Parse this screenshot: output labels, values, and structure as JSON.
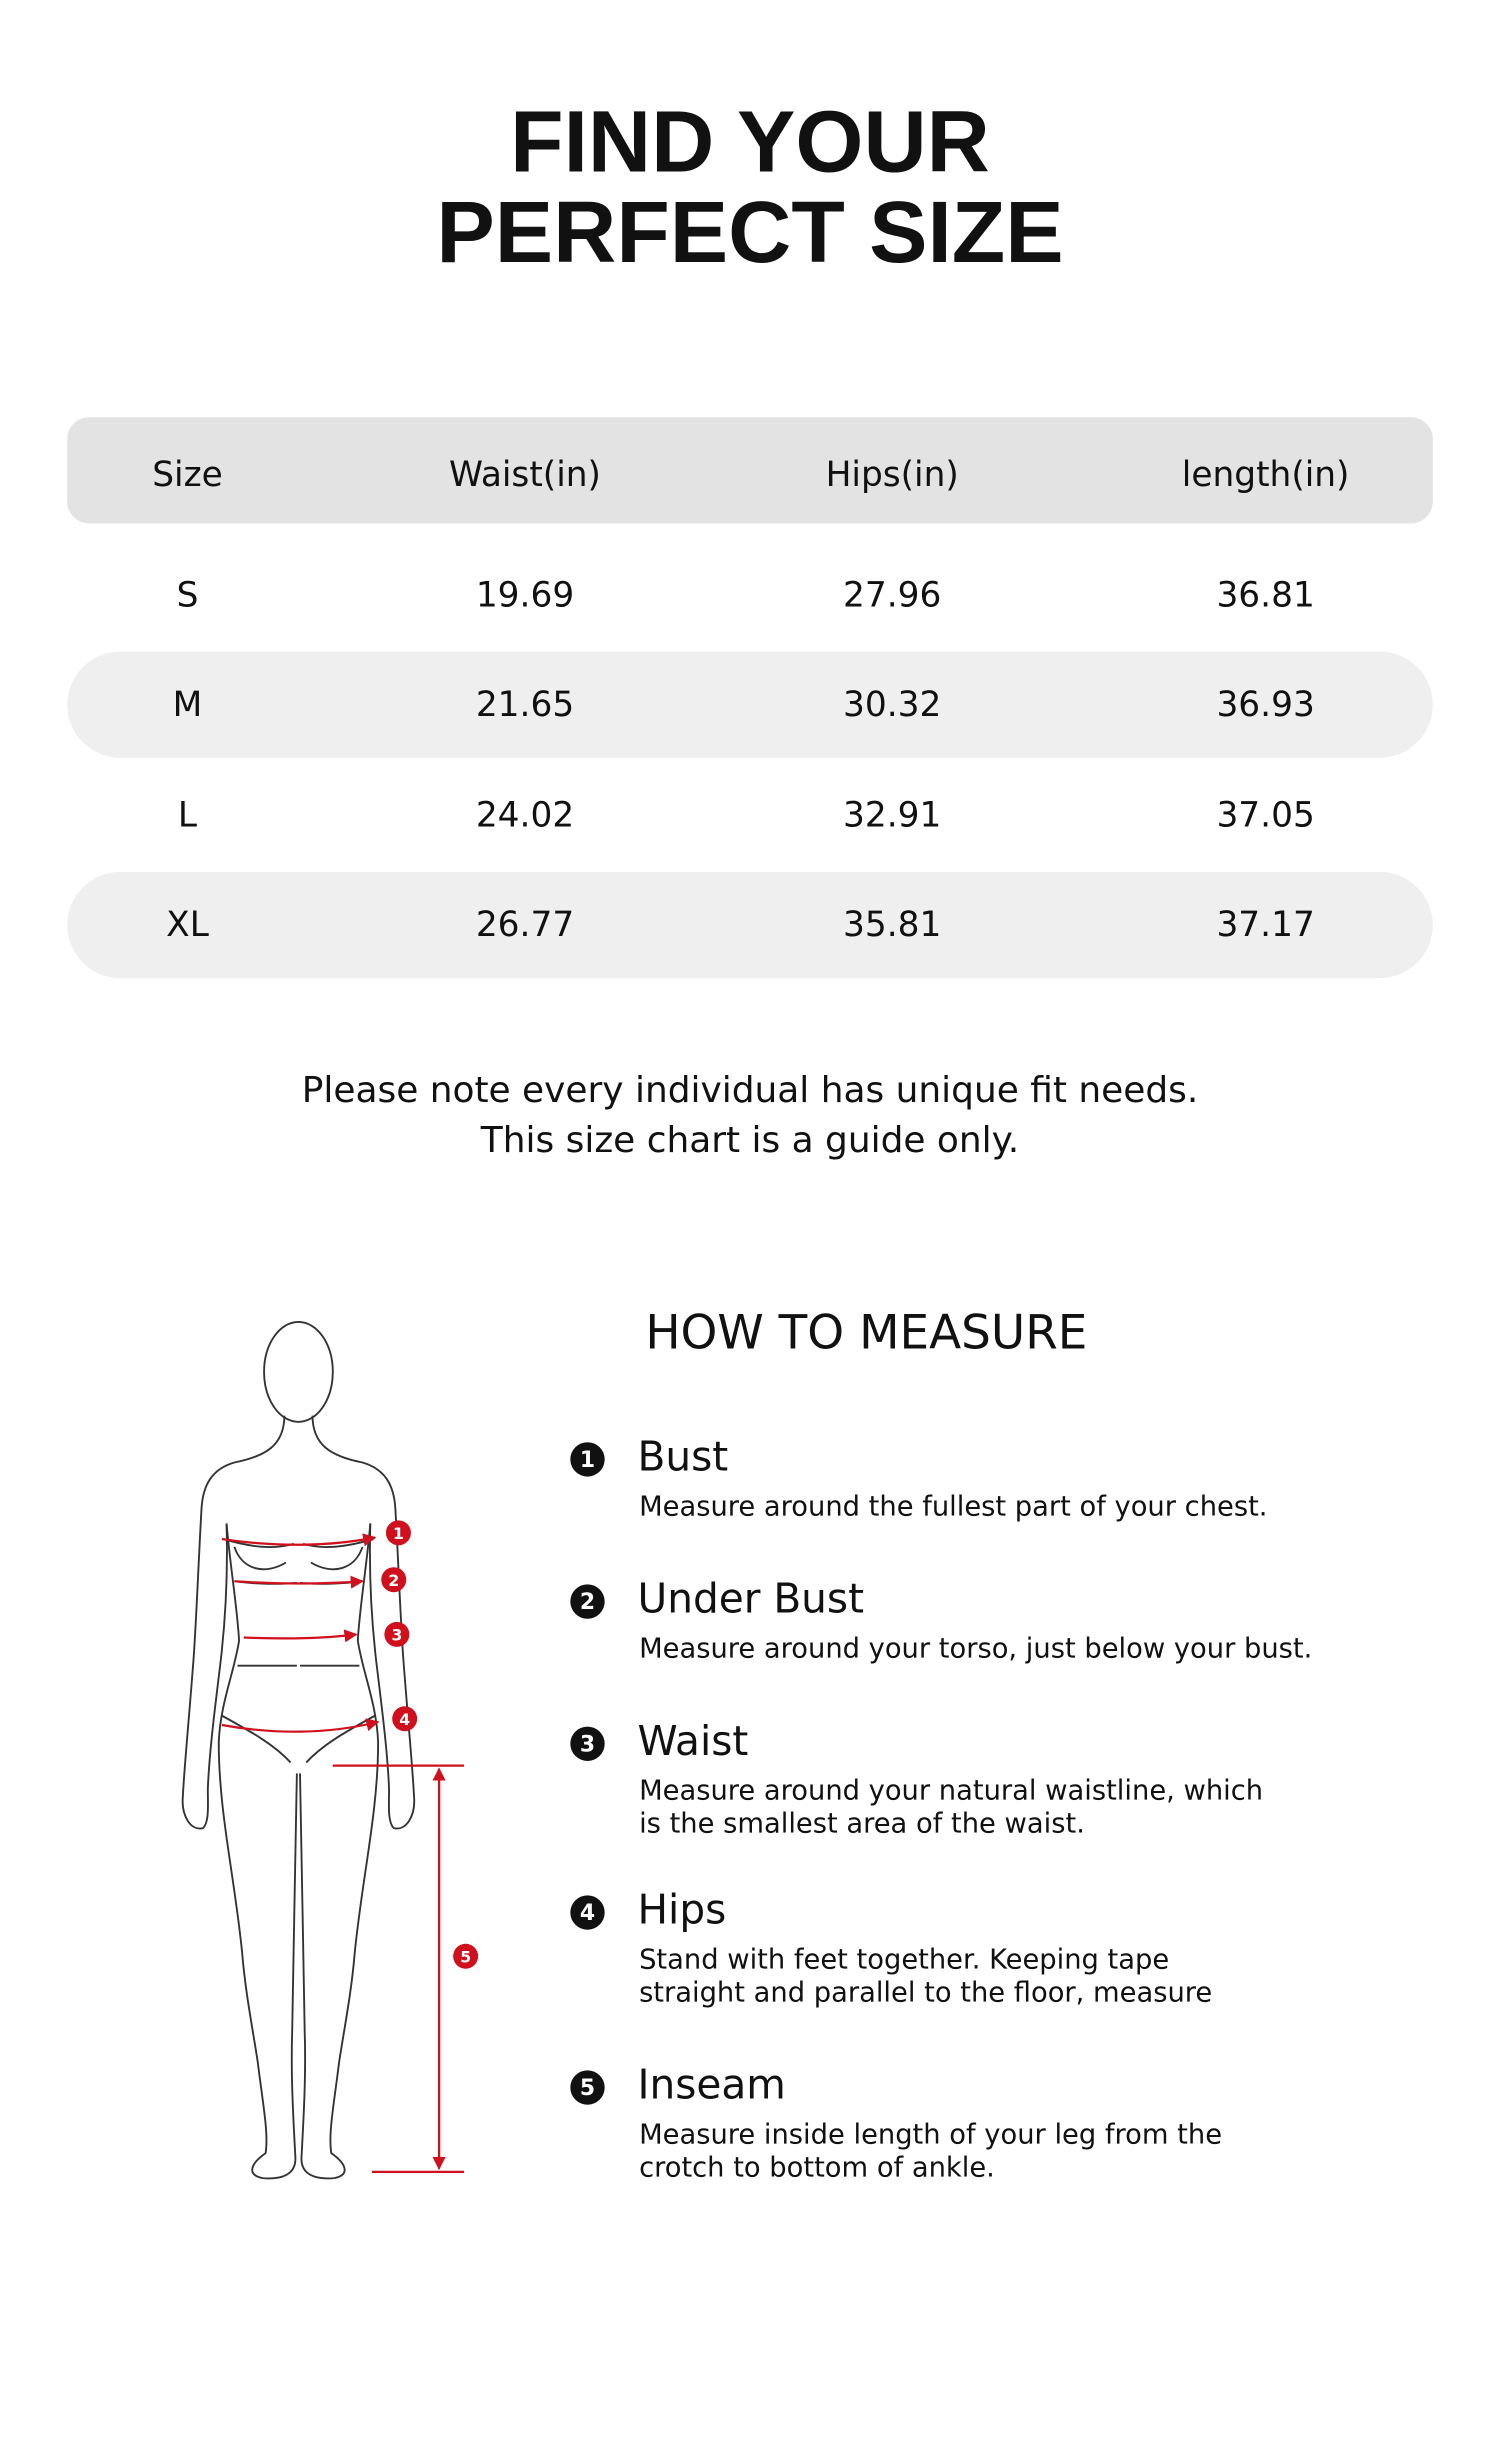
{
  "header": {
    "title_lines": [
      "FIND YOUR",
      "PERFECT SIZE"
    ]
  },
  "table": {
    "columns": [
      "Size",
      "Waist(in)",
      "Hips(in)",
      "length(in)"
    ],
    "rows": [
      [
        "S",
        "19.69",
        "27.96",
        "36.81"
      ],
      [
        "M",
        "21.65",
        "30.32",
        "36.93"
      ],
      [
        "L",
        "24.02",
        "32.91",
        "37.05"
      ],
      [
        "XL",
        "26.77",
        "35.81",
        "37.17"
      ]
    ]
  },
  "note": [
    "Please note every individual has unique fit needs.",
    "This size chart is a guide only."
  ],
  "measure": {
    "title": "HOW TO MEASURE",
    "items": [
      {
        "number": "1",
        "name": "Bust",
        "description": [
          "Measure around the fullest part of your chest."
        ]
      },
      {
        "number": "2",
        "name": "Under Bust",
        "description": [
          "Measure around your torso, just below your bust."
        ]
      },
      {
        "number": "3",
        "name": "Waist",
        "description": [
          "Measure around your natural waistline, which",
          "is the smallest area of the waist."
        ]
      },
      {
        "number": "4",
        "name": "Hips",
        "description": [
          "Stand with feet together. Keeping tape",
          "straight and parallel to the floor, measure"
        ]
      },
      {
        "number": "5",
        "name": "Inseam",
        "description": [
          "Measure inside length of your leg from the",
          "crotch to bottom of ankle."
        ]
      }
    ]
  }
}
